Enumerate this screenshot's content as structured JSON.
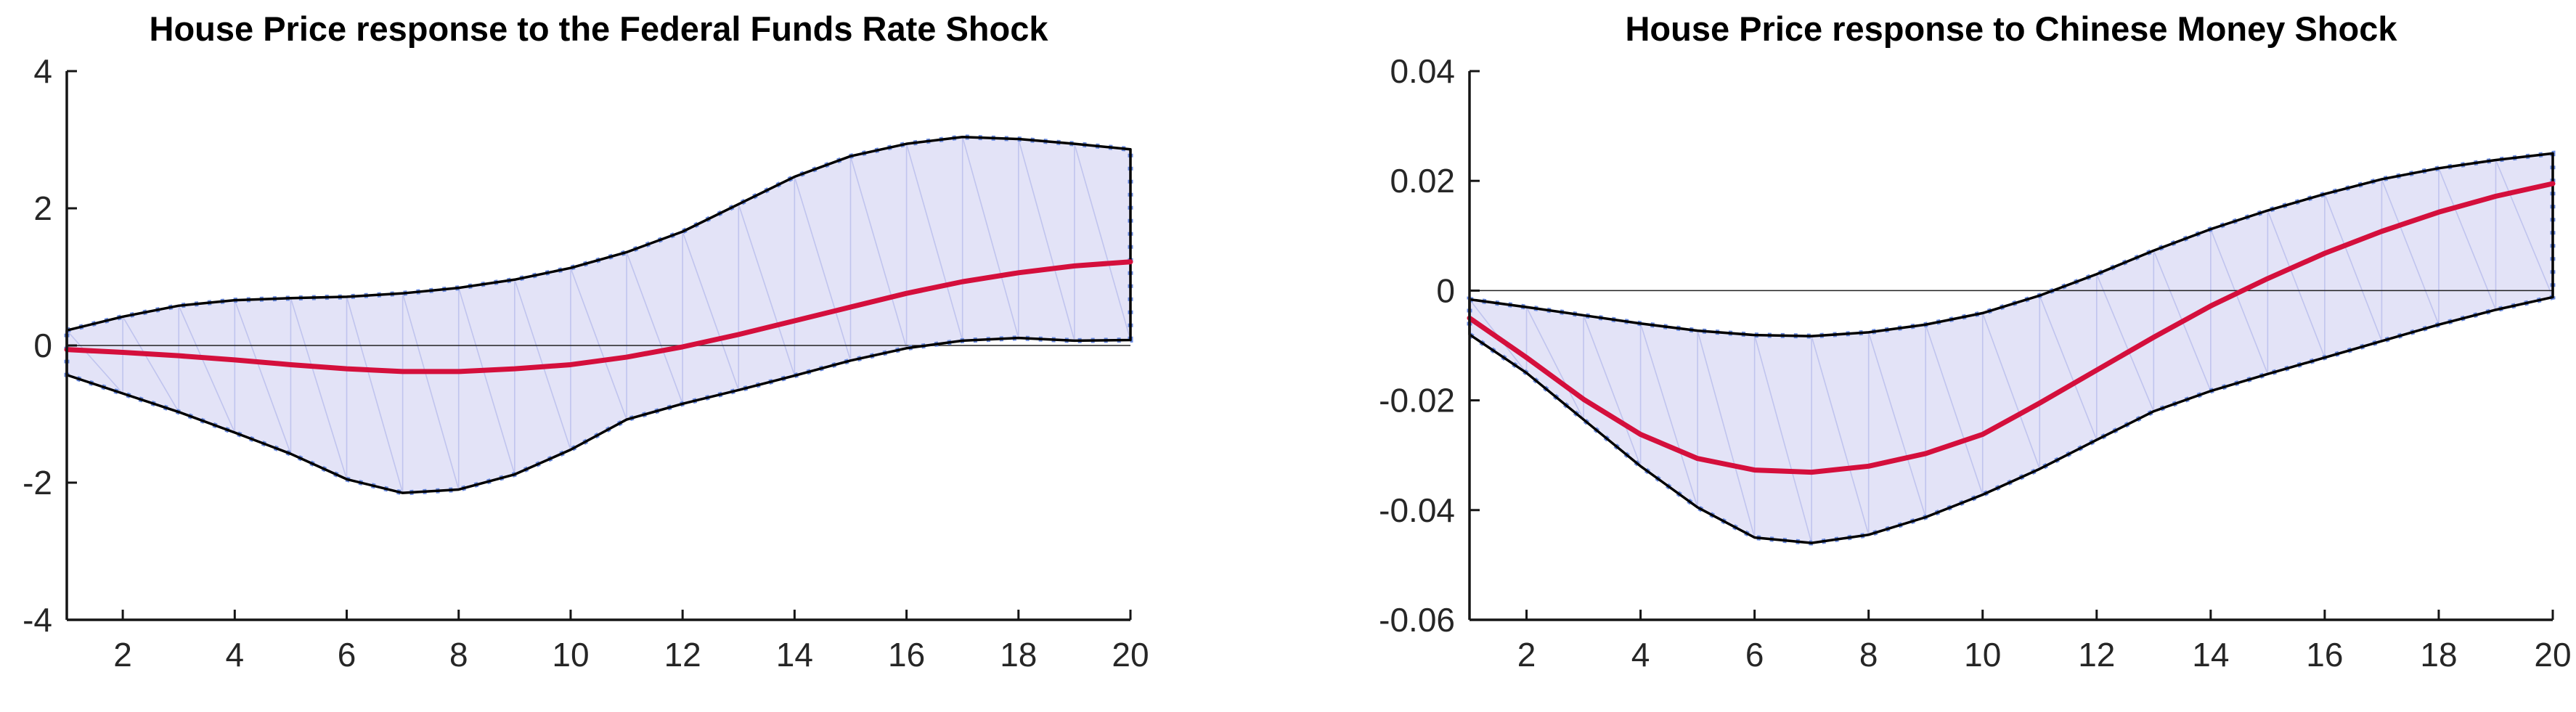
{
  "page": {
    "background": "#ffffff"
  },
  "style": {
    "band_fill": "#e3e3f7",
    "band_mesh": "#c0c4ee",
    "band_edge": "#000000",
    "band_marker": "#6b8bdf",
    "impulse_line": "#d40f3c",
    "zero_line": "#222222",
    "axis": "#151515",
    "tick_text": "#262626",
    "title_text": "#000000"
  },
  "chart_data": [
    {
      "type": "area",
      "title": "House Price response to the Federal Funds Rate Shock",
      "xlabel": "",
      "ylabel": "",
      "x": [
        1,
        2,
        3,
        4,
        5,
        6,
        7,
        8,
        9,
        10,
        11,
        12,
        13,
        14,
        15,
        16,
        17,
        18,
        19,
        20
      ],
      "series": [
        {
          "name": "upper_band",
          "values": [
            0.22,
            0.42,
            0.58,
            0.66,
            0.69,
            0.71,
            0.76,
            0.84,
            0.96,
            1.13,
            1.36,
            1.66,
            2.06,
            2.46,
            2.76,
            2.94,
            3.04,
            3.01,
            2.94,
            2.86
          ]
        },
        {
          "name": "median_response",
          "values": [
            -0.06,
            -0.1,
            -0.15,
            -0.21,
            -0.28,
            -0.34,
            -0.38,
            -0.38,
            -0.34,
            -0.28,
            -0.17,
            -0.02,
            0.16,
            0.36,
            0.56,
            0.76,
            0.93,
            1.06,
            1.16,
            1.22
          ]
        },
        {
          "name": "lower_band",
          "values": [
            -0.43,
            -0.7,
            -0.97,
            -1.27,
            -1.58,
            -1.95,
            -2.15,
            -2.1,
            -1.88,
            -1.52,
            -1.08,
            -0.85,
            -0.65,
            -0.44,
            -0.22,
            -0.04,
            0.07,
            0.11,
            0.07,
            0.08
          ]
        }
      ],
      "xlim": [
        1,
        20
      ],
      "ylim": [
        -4,
        4
      ],
      "xticks": [
        2,
        4,
        6,
        8,
        10,
        12,
        14,
        16,
        18,
        20
      ],
      "yticks": [
        4,
        2,
        0,
        -2,
        -4
      ],
      "ytick_labels": [
        "4",
        "2",
        "0",
        "-2",
        "-4"
      ],
      "grid": false,
      "legend": null,
      "zero_line": true
    },
    {
      "type": "area",
      "title": "House Price response to Chinese Money Shock",
      "xlabel": "",
      "ylabel": "",
      "x": [
        1,
        2,
        3,
        4,
        5,
        6,
        7,
        8,
        9,
        10,
        11,
        12,
        13,
        14,
        15,
        16,
        17,
        18,
        19,
        20
      ],
      "series": [
        {
          "name": "upper_band",
          "values": [
            -0.0016,
            -0.003,
            -0.0045,
            -0.006,
            -0.0073,
            -0.0081,
            -0.0083,
            -0.0076,
            -0.0062,
            -0.0041,
            -0.0009,
            0.003,
            0.0073,
            0.0112,
            0.0146,
            0.0176,
            0.0203,
            0.0223,
            0.0238,
            0.025
          ]
        },
        {
          "name": "median_response",
          "values": [
            -0.005,
            -0.0122,
            -0.0198,
            -0.0262,
            -0.0306,
            -0.0327,
            -0.0331,
            -0.032,
            -0.0297,
            -0.0262,
            -0.0205,
            -0.0145,
            -0.0085,
            -0.0028,
            0.0022,
            0.0068,
            0.0108,
            0.0143,
            0.0172,
            0.0195
          ]
        },
        {
          "name": "lower_band",
          "values": [
            -0.008,
            -0.015,
            -0.0235,
            -0.032,
            -0.0395,
            -0.045,
            -0.046,
            -0.0445,
            -0.0413,
            -0.0372,
            -0.0325,
            -0.0272,
            -0.022,
            -0.0183,
            -0.0152,
            -0.0122,
            -0.0092,
            -0.0062,
            -0.0035,
            -0.0012
          ]
        }
      ],
      "xlim": [
        1,
        20
      ],
      "ylim": [
        -0.06,
        0.04
      ],
      "xticks": [
        2,
        4,
        6,
        8,
        10,
        12,
        14,
        16,
        18,
        20
      ],
      "yticks": [
        0.04,
        0.02,
        0,
        -0.02,
        -0.04,
        -0.06
      ],
      "ytick_labels": [
        "0.04",
        "0.02",
        "0",
        "-0.02",
        "-0.04",
        "-0.06"
      ],
      "grid": false,
      "legend": null,
      "zero_line": true
    }
  ]
}
